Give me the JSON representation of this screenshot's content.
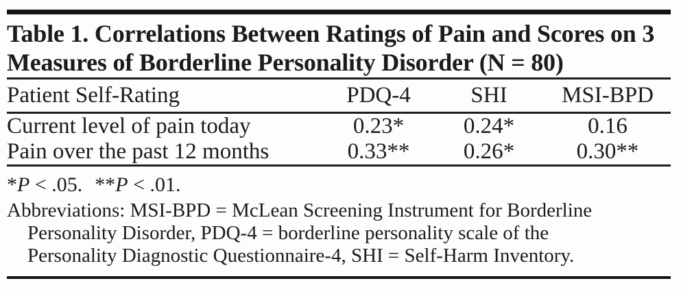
{
  "document": {
    "title_line1": "Table 1. Correlations Between Ratings of Pain and Scores on 3",
    "title_line2": "Measures of Borderline Personality Disorder (N = 80)"
  },
  "table": {
    "columns": [
      "Patient Self-Rating",
      "PDQ-4",
      "SHI",
      "MSI-BPD"
    ],
    "rows": [
      {
        "label": "Current level of pain today",
        "values": [
          "0.23*",
          "0.24*",
          "0.16"
        ]
      },
      {
        "label": "Pain over the past 12 months",
        "values": [
          "0.33**",
          "0.26*",
          "0.30**"
        ]
      }
    ]
  },
  "footnotes": {
    "sig_star1": "*",
    "sig_p1": "P",
    "sig_rest1": " < .05.",
    "sig_star2": "**",
    "sig_p2": "P",
    "sig_rest2": " < .01.",
    "abbrev_line1": "Abbreviations: MSI-BPD = McLean Screening Instrument for Borderline",
    "abbrev_line2": "Personality Disorder, PDQ-4 = borderline personality scale of the",
    "abbrev_line3": "Personality Diagnostic Questionnaire-4, SHI = Self-Harm Inventory."
  },
  "colors": {
    "text": "#1b1b1b",
    "rule": "#1d1d1d",
    "background": "#fdfdfd"
  },
  "chart_data": {
    "type": "table",
    "title": "Table 1. Correlations Between Ratings of Pain and Scores on 3 Measures of Borderline Personality Disorder (N = 80)",
    "columns": [
      "Patient Self-Rating",
      "PDQ-4",
      "SHI",
      "MSI-BPD"
    ],
    "rows": [
      [
        "Current level of pain today",
        "0.23*",
        "0.24*",
        "0.16"
      ],
      [
        "Pain over the past 12 months",
        "0.33**",
        "0.26*",
        "0.30**"
      ]
    ],
    "notes": [
      "*P < .05.",
      "**P < .01."
    ]
  }
}
